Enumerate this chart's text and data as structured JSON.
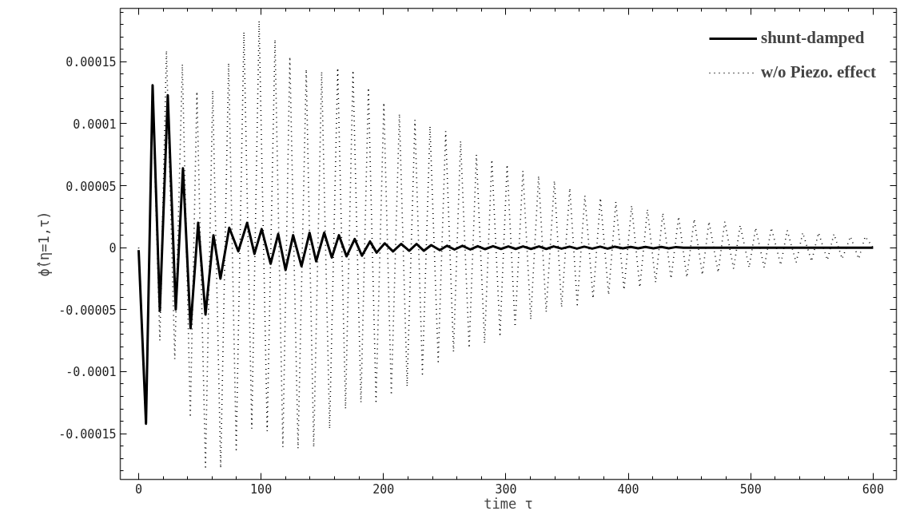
{
  "chart_data": {
    "type": "line",
    "xlabel": "time τ",
    "ylabel": "ϕ̂(η=1,τ)",
    "xlim": [
      -15,
      619
    ],
    "ylim": [
      -0.000187,
      0.000193
    ],
    "xticks": [
      0,
      100,
      200,
      300,
      400,
      500,
      600
    ],
    "yticks": [
      {
        "value": -0.00015,
        "label": "-0.00015"
      },
      {
        "value": -0.0001,
        "label": "-0.0001"
      },
      {
        "value": -5e-05,
        "label": "-0.00005"
      },
      {
        "value": 0,
        "label": "0"
      },
      {
        "value": 5e-05,
        "label": "0.00005"
      },
      {
        "value": 0.0001,
        "label": "0.0001"
      },
      {
        "value": 0.00015,
        "label": "0.00015"
      }
    ],
    "grid": false,
    "legend": "top right",
    "marker": "none",
    "series": [
      {
        "name": "shunt-damped",
        "color": "#000000",
        "line_style": "solid",
        "x": [
          0,
          6,
          11.4,
          17.3,
          23.8,
          30.3,
          36.2,
          42.4,
          48.6,
          54.6,
          61.1,
          66.8,
          74,
          81.4,
          88.6,
          94.6,
          100.5,
          107.8,
          114,
          120,
          126.2,
          133,
          139.6,
          145,
          151.6,
          157.8,
          163.6,
          169.8,
          176.5,
          182.4,
          189,
          194.4,
          201,
          207.8,
          214.4,
          221,
          227,
          233,
          239,
          246,
          252,
          258,
          264.5,
          271,
          277,
          283,
          289.5,
          296,
          302,
          308,
          314,
          320.5,
          327,
          333,
          339,
          345.5,
          352,
          358,
          364,
          370.5,
          377,
          383,
          389,
          395.5,
          402,
          408,
          414,
          420.5,
          427,
          433,
          439,
          445,
          600
        ],
        "values": [
          -2e-06,
          -0.000142,
          0.000131,
          -5.1e-05,
          0.000123,
          -5e-05,
          6.4e-05,
          -6.5e-05,
          2e-05,
          -5.4e-05,
          1e-05,
          -2.5e-05,
          1.6e-05,
          -3e-06,
          2e-05,
          -5e-06,
          1.5e-05,
          -1.3e-05,
          1.1e-05,
          -1.8e-05,
          1e-05,
          -1.5e-05,
          1.2e-05,
          -1.1e-05,
          1.2e-05,
          -8e-06,
          1e-05,
          -7e-06,
          7e-06,
          -6.5e-06,
          5e-06,
          -4e-06,
          3.5e-06,
          -3e-06,
          3e-06,
          -2.5e-06,
          3e-06,
          -2.5e-06,
          2e-06,
          -2e-06,
          1.5e-06,
          -1.5e-06,
          1.5e-06,
          -1.5e-06,
          1.2e-06,
          -1.2e-06,
          1.2e-06,
          -1e-06,
          1e-06,
          -1e-06,
          1e-06,
          -1e-06,
          1e-06,
          -1e-06,
          1e-06,
          -8e-07,
          8e-07,
          -8e-07,
          8e-07,
          -8e-07,
          8e-07,
          -8e-07,
          8e-07,
          -6e-07,
          6e-07,
          -6e-07,
          6e-07,
          -6e-07,
          6e-07,
          -5e-07,
          5e-07,
          0,
          0
        ]
      },
      {
        "name": "w/o Piezo. effect",
        "color": "#000000",
        "line_style": "dotted",
        "x": [
          0,
          6,
          11.4,
          17.3,
          22.7,
          29.5,
          35.7,
          42.2,
          47.6,
          54.6,
          60.5,
          67,
          73.5,
          79.7,
          86,
          92.4,
          98.4,
          105,
          111.4,
          117.8,
          123.5,
          130.2,
          136.9,
          143,
          149.5,
          156,
          162.6,
          169,
          175.1,
          181.6,
          187.7,
          193.9,
          200.3,
          206.4,
          213,
          219.3,
          225.7,
          231.8,
          238,
          244.7,
          250.8,
          257.2,
          263,
          270,
          275.9,
          282.6,
          288.5,
          295.2,
          301,
          307.5,
          313.9,
          320.3,
          326.7,
          332.9,
          339.6,
          345.5,
          352.2,
          358.3,
          364.5,
          371.2,
          377.2,
          383.9,
          389.8,
          396.5,
          402.7,
          409.4,
          415.6,
          422.3,
          428.2,
          434.9,
          441.1,
          447.8,
          453.8,
          460.5,
          465.9,
          473.4,
          478.8,
          486,
          491.4,
          498.7,
          504,
          511,
          516.9,
          524.5,
          529.8,
          537.1,
          542.5,
          549.7,
          555.4,
          562.6,
          568,
          574.7,
          581.5,
          588.2,
          593.5,
          600
        ],
        "values": [
          0,
          -0.00014,
          0.00013,
          -7.5e-05,
          0.000159,
          -9e-05,
          0.000148,
          -0.000137,
          0.000126,
          -0.000177,
          0.000127,
          -0.000178,
          0.000149,
          -0.000163,
          0.000174,
          -0.000146,
          0.000183,
          -0.000148,
          0.000168,
          -0.000161,
          0.000154,
          -0.000162,
          0.000144,
          -0.000161,
          0.000142,
          -0.000146,
          0.000145,
          -0.00013,
          0.000143,
          -0.000125,
          0.000129,
          -0.000124,
          0.000117,
          -0.000119,
          0.000108,
          -0.000112,
          0.000103,
          -0.000102,
          9.8e-05,
          -9.2e-05,
          9.4e-05,
          -8.4e-05,
          8.6e-05,
          -8.1e-05,
          7.5e-05,
          -7.7e-05,
          7.1e-05,
          -7e-05,
          6.7e-05,
          -6.4e-05,
          6.2e-05,
          -5.8e-05,
          5.8e-05,
          -5.2e-05,
          5.4e-05,
          -4.8e-05,
          4.8e-05,
          -4.6e-05,
          4.2e-05,
          -4.1e-05,
          4e-05,
          -3.8e-05,
          3.7e-05,
          -3.4e-05,
          3.4e-05,
          -3.2e-05,
          3.1e-05,
          -2.8e-05,
          2.8e-05,
          -2.5e-05,
          2.5e-05,
          -2.4e-05,
          2.3e-05,
          -2.2e-05,
          2.1e-05,
          -2e-05,
          2.1e-05,
          -1.7e-05,
          1.8e-05,
          -1.6e-05,
          1.6e-05,
          -1.6e-05,
          1.6e-05,
          -1.4e-05,
          1.4e-05,
          -1.2e-05,
          1.2e-05,
          -1.1e-05,
          1.2e-05,
          -1e-05,
          1.1e-05,
          -9e-06,
          9e-06,
          -9e-06,
          9e-06,
          0
        ]
      }
    ]
  }
}
